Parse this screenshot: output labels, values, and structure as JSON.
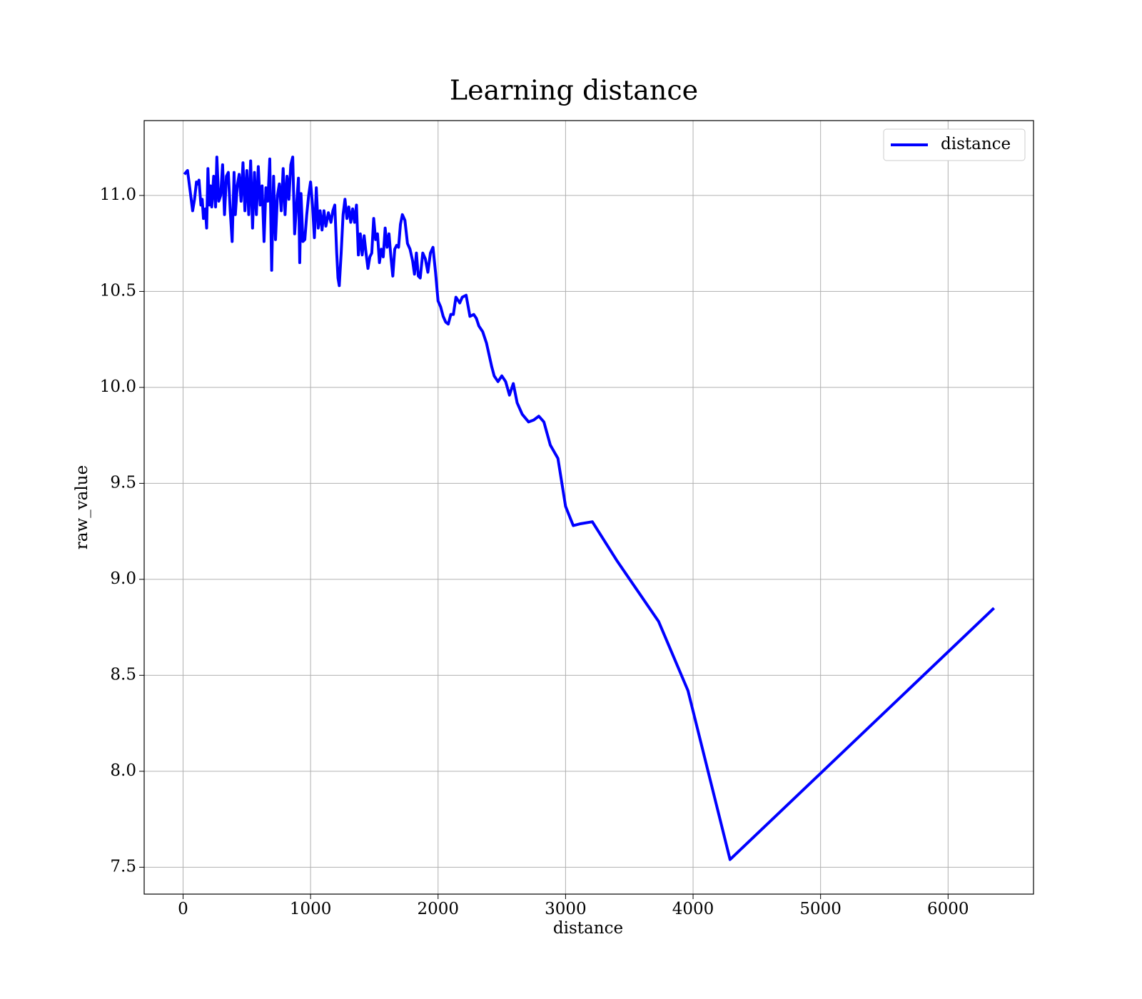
{
  "chart_data": {
    "type": "line",
    "title": "Learning distance",
    "xlabel": "distance",
    "ylabel": "raw_value",
    "x": [
      10,
      35,
      60,
      75,
      90,
      105,
      115,
      125,
      140,
      150,
      160,
      175,
      185,
      195,
      205,
      215,
      225,
      240,
      255,
      265,
      280,
      295,
      310,
      325,
      340,
      355,
      370,
      385,
      400,
      410,
      425,
      440,
      455,
      470,
      485,
      500,
      515,
      530,
      545,
      560,
      575,
      590,
      605,
      620,
      635,
      650,
      665,
      680,
      695,
      710,
      725,
      740,
      755,
      770,
      785,
      800,
      815,
      830,
      845,
      860,
      875,
      890,
      905,
      915,
      925,
      940,
      955,
      970,
      985,
      1000,
      1015,
      1030,
      1045,
      1060,
      1075,
      1090,
      1105,
      1120,
      1140,
      1160,
      1175,
      1190,
      1205,
      1215,
      1225,
      1240,
      1255,
      1270,
      1285,
      1300,
      1315,
      1330,
      1345,
      1360,
      1375,
      1390,
      1405,
      1420,
      1435,
      1450,
      1465,
      1480,
      1495,
      1510,
      1525,
      1540,
      1555,
      1570,
      1585,
      1600,
      1615,
      1630,
      1645,
      1660,
      1675,
      1690,
      1705,
      1720,
      1740,
      1760,
      1780,
      1800,
      1815,
      1830,
      1845,
      1860,
      1880,
      1900,
      1920,
      1940,
      1960,
      1980,
      2000,
      2020,
      2040,
      2060,
      2080,
      2100,
      2120,
      2140,
      2170,
      2190,
      2220,
      2250,
      2280,
      2300,
      2320,
      2350,
      2380,
      2420,
      2440,
      2470,
      2500,
      2530,
      2560,
      2590,
      2620,
      2660,
      2710,
      2750,
      2790,
      2830,
      2880,
      2940,
      3000,
      3060,
      3120,
      3210,
      3400,
      3730,
      3960,
      4290,
      6360
    ],
    "series": [
      {
        "name": "distance",
        "color": "#0000ff",
        "values": [
          11.11,
          11.13,
          11.0,
          10.92,
          10.98,
          11.07,
          11.06,
          11.08,
          10.95,
          10.98,
          10.88,
          10.93,
          10.83,
          11.14,
          10.95,
          11.05,
          10.94,
          11.1,
          10.94,
          11.2,
          10.97,
          11.0,
          11.16,
          10.9,
          11.1,
          11.12,
          10.92,
          10.76,
          11.12,
          10.9,
          11.05,
          11.11,
          10.97,
          11.17,
          10.92,
          11.13,
          10.9,
          11.18,
          10.83,
          11.12,
          10.9,
          11.15,
          10.95,
          11.05,
          10.76,
          11.04,
          10.97,
          11.19,
          10.61,
          11.1,
          10.77,
          11.0,
          11.06,
          10.92,
          11.14,
          10.9,
          11.1,
          10.98,
          11.16,
          11.2,
          10.8,
          10.95,
          11.09,
          10.65,
          11.01,
          10.76,
          10.77,
          10.9,
          11.0,
          11.07,
          10.95,
          10.78,
          11.04,
          10.83,
          10.92,
          10.82,
          10.92,
          10.84,
          10.91,
          10.86,
          10.92,
          10.95,
          10.7,
          10.57,
          10.53,
          10.7,
          10.9,
          10.98,
          10.88,
          10.94,
          10.86,
          10.93,
          10.86,
          10.95,
          10.69,
          10.8,
          10.69,
          10.79,
          10.7,
          10.62,
          10.68,
          10.7,
          10.88,
          10.77,
          10.8,
          10.65,
          10.72,
          10.68,
          10.83,
          10.73,
          10.8,
          10.68,
          10.58,
          10.72,
          10.74,
          10.73,
          10.85,
          10.9,
          10.87,
          10.75,
          10.72,
          10.66,
          10.59,
          10.7,
          10.58,
          10.57,
          10.7,
          10.67,
          10.6,
          10.7,
          10.73,
          10.6,
          10.45,
          10.42,
          10.37,
          10.34,
          10.33,
          10.38,
          10.38,
          10.47,
          10.44,
          10.47,
          10.48,
          10.37,
          10.38,
          10.36,
          10.32,
          10.29,
          10.23,
          10.11,
          10.06,
          10.03,
          10.06,
          10.03,
          9.96,
          10.02,
          9.92,
          9.86,
          9.82,
          9.83,
          9.85,
          9.82,
          9.7,
          9.63,
          9.38,
          9.28,
          9.29,
          9.3,
          9.1,
          8.78,
          8.42,
          7.54,
          8.85
        ]
      }
    ],
    "xlim": [
      -305,
      6670
    ],
    "ylim": [
      7.36,
      11.39
    ],
    "xticks": [
      0,
      1000,
      2000,
      3000,
      4000,
      5000,
      6000
    ],
    "yticks": [
      7.5,
      {
        "value": 8,
        "label": "8.0"
      },
      8.5,
      {
        "value": 9,
        "label": "9.0"
      },
      9.5,
      {
        "value": 10,
        "label": "10.0"
      },
      10.5,
      {
        "value": 11,
        "label": "11.0"
      }
    ],
    "grid": true,
    "legend": "upper right"
  }
}
